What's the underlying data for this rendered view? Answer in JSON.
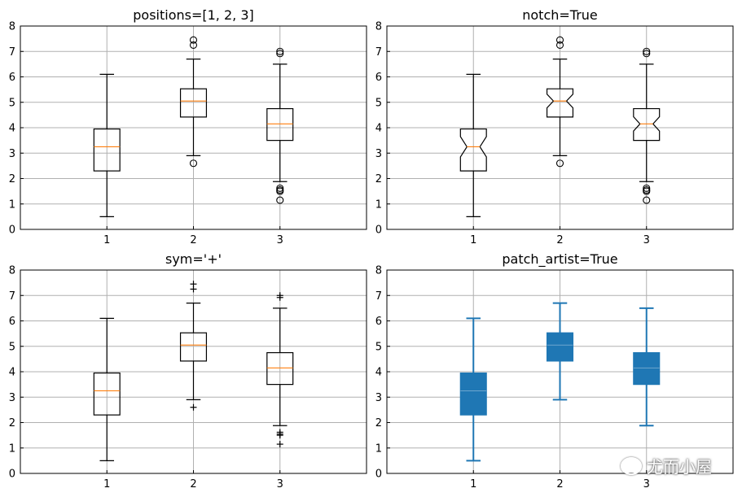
{
  "figure": {
    "watermark_text": "尤而小屋"
  },
  "colors": {
    "median": "#ff7f0e",
    "patch_fill": "#1f77b4",
    "grid": "#b0b0b0",
    "axes": "#000000"
  },
  "chart_data": [
    {
      "type": "boxplot",
      "title": "positions=[1, 2, 3]",
      "categories": [
        "1",
        "2",
        "3"
      ],
      "x_ticks": [
        1,
        2,
        3
      ],
      "xlim": [
        0,
        4
      ],
      "ylim": [
        0,
        8
      ],
      "y_ticks": [
        0,
        1,
        2,
        3,
        4,
        5,
        6,
        7,
        8
      ],
      "grid": true,
      "notch": false,
      "patch_artist": false,
      "flier_marker": "o",
      "boxes": [
        {
          "position": 1,
          "whislo": 0.5,
          "q1": 2.3,
          "med": 3.25,
          "q3": 3.95,
          "whishi": 6.1,
          "fliers": []
        },
        {
          "position": 2,
          "whislo": 2.9,
          "q1": 4.42,
          "med": 5.05,
          "q3": 5.53,
          "whishi": 6.7,
          "fliers": [
            7.25,
            7.45,
            2.6
          ]
        },
        {
          "position": 3,
          "whislo": 1.88,
          "q1": 3.5,
          "med": 4.15,
          "q3": 4.75,
          "whishi": 6.5,
          "fliers": [
            6.92,
            7.0,
            1.62,
            1.55,
            1.5,
            1.15
          ]
        }
      ]
    },
    {
      "type": "boxplot",
      "title": "notch=True",
      "categories": [
        "1",
        "2",
        "3"
      ],
      "x_ticks": [
        1,
        2,
        3
      ],
      "xlim": [
        0,
        4
      ],
      "ylim": [
        0,
        8
      ],
      "y_ticks": [
        0,
        1,
        2,
        3,
        4,
        5,
        6,
        7,
        8
      ],
      "grid": true,
      "notch": true,
      "patch_artist": false,
      "flier_marker": "o",
      "boxes": [
        {
          "position": 1,
          "whislo": 0.5,
          "q1": 2.3,
          "med": 3.25,
          "q3": 3.95,
          "whishi": 6.1,
          "notch_lo": 2.85,
          "notch_hi": 3.65,
          "fliers": []
        },
        {
          "position": 2,
          "whislo": 2.9,
          "q1": 4.42,
          "med": 5.05,
          "q3": 5.53,
          "whishi": 6.7,
          "notch_lo": 4.78,
          "notch_hi": 5.32,
          "fliers": [
            7.25,
            7.45,
            2.6
          ]
        },
        {
          "position": 3,
          "whislo": 1.88,
          "q1": 3.5,
          "med": 4.15,
          "q3": 4.75,
          "whishi": 6.5,
          "notch_lo": 3.87,
          "notch_hi": 4.43,
          "fliers": [
            6.92,
            7.0,
            1.62,
            1.55,
            1.5,
            1.15
          ]
        }
      ]
    },
    {
      "type": "boxplot",
      "title": "sym='+'",
      "categories": [
        "1",
        "2",
        "3"
      ],
      "x_ticks": [
        1,
        2,
        3
      ],
      "xlim": [
        0,
        4
      ],
      "ylim": [
        0,
        8
      ],
      "y_ticks": [
        0,
        1,
        2,
        3,
        4,
        5,
        6,
        7,
        8
      ],
      "grid": true,
      "notch": false,
      "patch_artist": false,
      "flier_marker": "+",
      "boxes": [
        {
          "position": 1,
          "whislo": 0.5,
          "q1": 2.3,
          "med": 3.25,
          "q3": 3.95,
          "whishi": 6.1,
          "fliers": []
        },
        {
          "position": 2,
          "whislo": 2.9,
          "q1": 4.42,
          "med": 5.05,
          "q3": 5.53,
          "whishi": 6.7,
          "fliers": [
            7.25,
            7.45,
            2.6
          ]
        },
        {
          "position": 3,
          "whislo": 1.88,
          "q1": 3.5,
          "med": 4.15,
          "q3": 4.75,
          "whishi": 6.5,
          "fliers": [
            6.92,
            7.0,
            1.62,
            1.55,
            1.5,
            1.15
          ]
        }
      ]
    },
    {
      "type": "boxplot",
      "title": "patch_artist=True",
      "categories": [
        "1",
        "2",
        "3"
      ],
      "x_ticks": [
        1,
        2,
        3
      ],
      "xlim": [
        0,
        4
      ],
      "ylim": [
        0,
        8
      ],
      "y_ticks": [
        0,
        1,
        2,
        3,
        4,
        5,
        6,
        7,
        8
      ],
      "grid": true,
      "notch": false,
      "patch_artist": true,
      "flier_marker": "",
      "boxes": [
        {
          "position": 1,
          "whislo": 0.5,
          "q1": 2.3,
          "med": 3.25,
          "q3": 3.95,
          "whishi": 6.1,
          "fliers": []
        },
        {
          "position": 2,
          "whislo": 2.9,
          "q1": 4.42,
          "med": 5.05,
          "q3": 5.53,
          "whishi": 6.7,
          "fliers": []
        },
        {
          "position": 3,
          "whislo": 1.88,
          "q1": 3.5,
          "med": 4.15,
          "q3": 4.75,
          "whishi": 6.5,
          "fliers": []
        }
      ]
    }
  ]
}
